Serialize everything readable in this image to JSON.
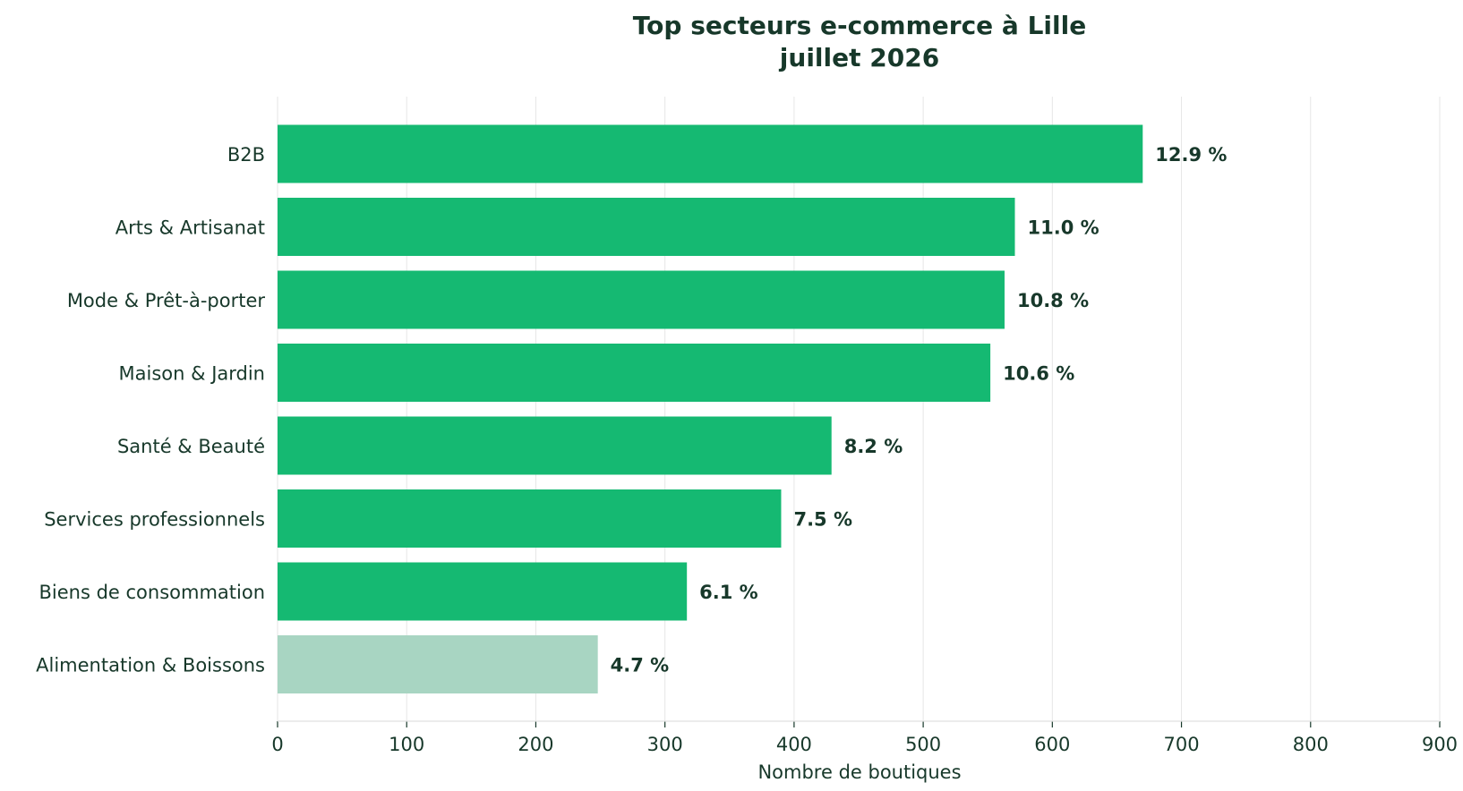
{
  "chart_data": {
    "type": "bar",
    "orientation": "horizontal",
    "title": "Top secteurs e-commerce à Lille",
    "subtitle": "juillet 2026",
    "xlabel": "Nombre de boutiques",
    "ylabel": "",
    "xlim": [
      0,
      900
    ],
    "xticks": [
      0,
      100,
      200,
      300,
      400,
      500,
      600,
      700,
      800,
      900
    ],
    "grid": "vertical",
    "categories": [
      "B2B",
      "Arts & Artisanat",
      "Mode & Prêt-à-porter",
      "Maison & Jardin",
      "Santé & Beauté",
      "Services professionnels",
      "Biens de consommation",
      "Alimentation & Boissons"
    ],
    "values": [
      670,
      571,
      563,
      552,
      429,
      390,
      317,
      248
    ],
    "data_labels": [
      "12.9 %",
      "11.0 %",
      "10.8 %",
      "10.6 %",
      "8.2 %",
      "7.5 %",
      "6.1 %",
      "4.7 %"
    ],
    "bar_colors": [
      "#15b972",
      "#15b972",
      "#15b972",
      "#15b972",
      "#15b972",
      "#15b972",
      "#15b972",
      "#a8d5c2"
    ]
  }
}
